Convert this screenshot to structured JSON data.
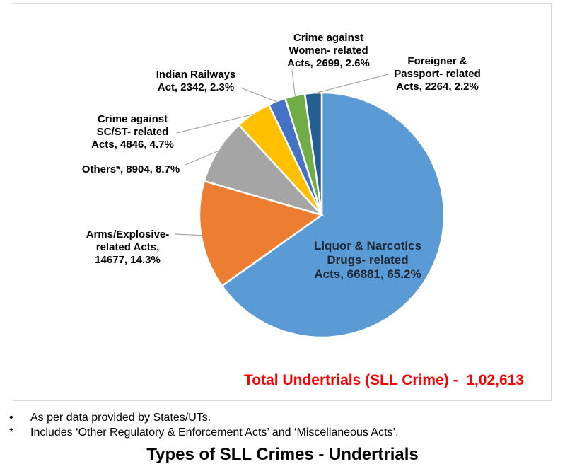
{
  "chart_data": {
    "type": "pie",
    "title": "Types of SLL Crimes - Undertrials",
    "total_label": "Total Undertrials (SLL Crime) -  1,02,613",
    "total_value": 102613,
    "start_angle_deg": 0,
    "direction": "clockwise",
    "slice_border_color": "#ffffff",
    "leader_line_color": "#a6a6a6",
    "slices": [
      {
        "name": "Liquor & Narcotics Drugs- related Acts",
        "value": 66881,
        "pct": "65.2%",
        "color": "#5B9BD5",
        "label_lines": [
          "Liquor & Narcotics",
          "Drugs- related",
          "Acts, 66881, 65.2%"
        ]
      },
      {
        "name": "Arms/Explosive- related Acts",
        "value": 14677,
        "pct": "14.3%",
        "color": "#ED7D31",
        "label_lines": [
          "Arms/Explosive-",
          "related Acts,",
          "14677, 14.3%"
        ]
      },
      {
        "name": "Others*",
        "value": 8904,
        "pct": "8.7%",
        "color": "#A5A5A5",
        "label_lines": [
          "Others*, 8904, 8.7%"
        ]
      },
      {
        "name": "Crime against SC/ST- related Acts",
        "value": 4846,
        "pct": "4.7%",
        "color": "#FFC000",
        "label_lines": [
          "Crime against",
          "SC/ST- related",
          "Acts, 4846, 4.7%"
        ]
      },
      {
        "name": "Indian Railways Act",
        "value": 2342,
        "pct": "2.3%",
        "color": "#4472C4",
        "label_lines": [
          "Indian Railways",
          "Act, 2342, 2.3%"
        ]
      },
      {
        "name": "Crime against Women- related Acts",
        "value": 2699,
        "pct": "2.6%",
        "color": "#70AD47",
        "label_lines": [
          "Crime against",
          "Women- related",
          "Acts, 2699, 2.6%"
        ]
      },
      {
        "name": "Foreigner & Passport- related Acts",
        "value": 2264,
        "pct": "2.2%",
        "color": "#255E91",
        "label_lines": [
          "Foreigner &",
          "Passport- related",
          "Acts, 2264, 2.2%"
        ]
      }
    ]
  },
  "footnotes": [
    {
      "marker": "•",
      "text": "As per data provided by States/UTs."
    },
    {
      "marker": "*",
      "text": "Includes ‘Other Regulatory & Enforcement Acts’ and ‘Miscellaneous Acts’."
    }
  ]
}
